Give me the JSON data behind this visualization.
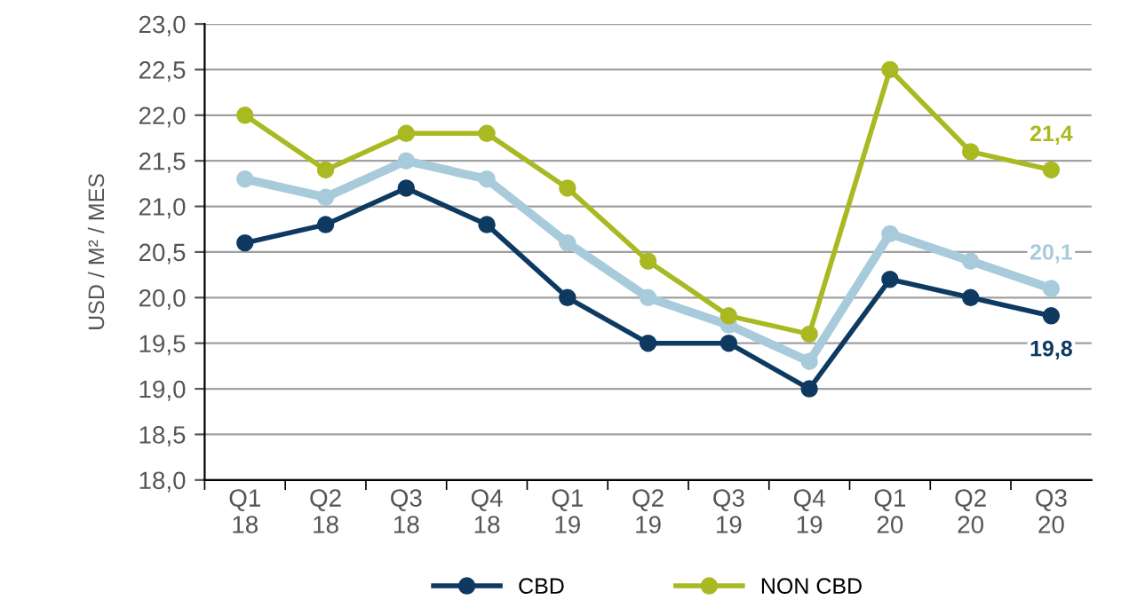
{
  "chart_data": {
    "type": "line",
    "ylabel": "USD / M² / MES",
    "categories": [
      "Q1\n18",
      "Q2\n18",
      "Q3\n18",
      "Q4\n18",
      "Q1\n19",
      "Q2\n19",
      "Q3\n19",
      "Q4\n19",
      "Q1\n20",
      "Q2\n20",
      "Q3\n20"
    ],
    "series": [
      {
        "color": "#a8cbdb",
        "values": [
          21.3,
          21.1,
          21.5,
          21.3,
          20.6,
          20.0,
          19.7,
          19.3,
          20.7,
          20.4,
          20.1
        ],
        "value_labels": [
          null,
          null,
          null,
          null,
          null,
          null,
          null,
          null,
          null,
          null,
          "20,1"
        ]
      },
      {
        "name": "CBD",
        "color": "#0e3a62",
        "values": [
          20.6,
          20.8,
          21.2,
          20.8,
          20.0,
          19.5,
          19.5,
          19.0,
          20.2,
          20.0,
          19.8
        ],
        "value_labels": [
          null,
          null,
          null,
          null,
          null,
          null,
          null,
          null,
          null,
          null,
          "19,8"
        ]
      },
      {
        "name": "NON CBD",
        "color": "#a9b922",
        "values": [
          22.0,
          21.4,
          21.8,
          21.8,
          21.2,
          20.4,
          19.8,
          19.6,
          22.5,
          21.6,
          21.4
        ],
        "value_labels": [
          null,
          null,
          null,
          null,
          null,
          null,
          null,
          null,
          null,
          null,
          "21,4"
        ]
      }
    ],
    "ylim": [
      18.0,
      23.0
    ],
    "yticks": [
      {
        "value": 18.0,
        "label": "18,0"
      },
      {
        "value": 18.5,
        "label": "18,5"
      },
      {
        "value": 19.0,
        "label": "19,0"
      },
      {
        "value": 19.5,
        "label": "19,5"
      },
      {
        "value": 20.0,
        "label": "20,0"
      },
      {
        "value": 20.5,
        "label": "20,5"
      },
      {
        "value": 21.0,
        "label": "21,0"
      },
      {
        "value": 21.5,
        "label": "21,5"
      },
      {
        "value": 22.0,
        "label": "22,0"
      },
      {
        "value": 22.5,
        "label": "22,5"
      },
      {
        "value": 23.0,
        "label": "23,0"
      }
    ],
    "grid": "y",
    "legend": "bottom",
    "marker": "circle",
    "line_style": "solid"
  }
}
